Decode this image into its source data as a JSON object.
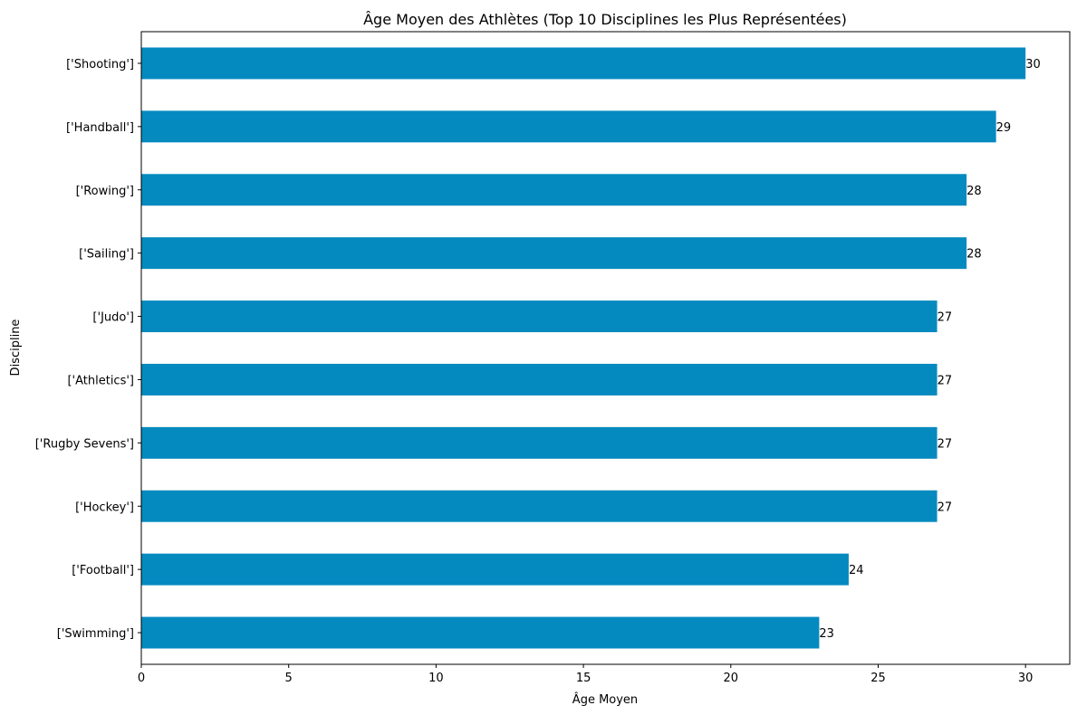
{
  "chart_data": {
    "type": "bar",
    "orientation": "horizontal",
    "title": "Âge Moyen des Athlètes (Top 10 Disciplines les Plus Représentées)",
    "xlabel": "Âge Moyen",
    "ylabel": "Discipline",
    "categories": [
      "['Shooting']",
      "['Handball']",
      "['Rowing']",
      "['Sailing']",
      "['Judo']",
      "['Athletics']",
      "['Rugby Sevens']",
      "['Hockey']",
      "['Football']",
      "['Swimming']"
    ],
    "values": [
      30,
      29,
      28,
      28,
      27,
      27,
      27,
      27,
      24,
      23
    ],
    "data_labels": [
      "30",
      "29",
      "28",
      "28",
      "27",
      "27",
      "27",
      "27",
      "24",
      "23"
    ],
    "xlim": [
      0,
      31.5
    ],
    "xticks": [
      0,
      5,
      10,
      15,
      20,
      25,
      30
    ],
    "xtick_labels": [
      "0",
      "5",
      "10",
      "15",
      "20",
      "25",
      "30"
    ],
    "bar_color": "#058abf",
    "grid": false,
    "legend": "none"
  }
}
